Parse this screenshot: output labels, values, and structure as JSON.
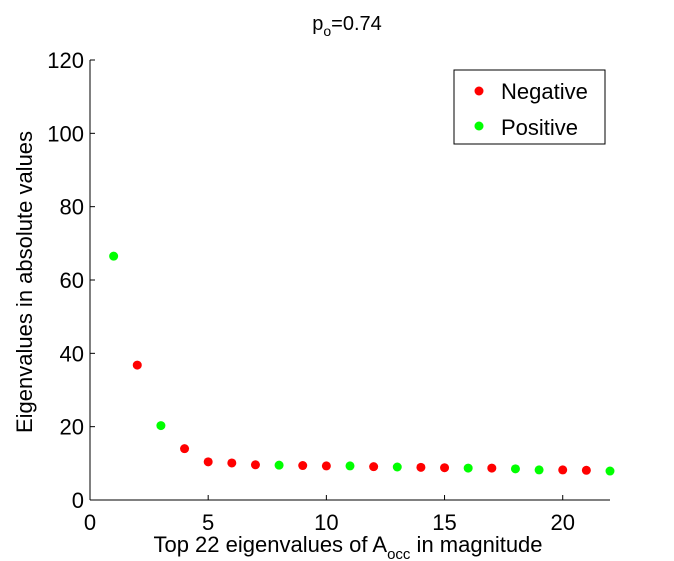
{
  "chart_data": {
    "type": "scatter",
    "title": {
      "base": "p",
      "sub": "o",
      "rest": "=0.74"
    },
    "xlabel": {
      "before": "Top 22 eigenvalues of A",
      "sub": "occ",
      "after": " in magnitude"
    },
    "ylabel": "Eigenvalues in absolute values",
    "xlim": [
      0,
      22
    ],
    "ylim": [
      0,
      120
    ],
    "xticks": [
      0,
      5,
      10,
      15,
      20
    ],
    "yticks": [
      0,
      20,
      40,
      60,
      80,
      100,
      120
    ],
    "grid": false,
    "legend_position": "top-right",
    "series": [
      {
        "name": "Negative",
        "color": "#ff0000",
        "x": [
          2,
          4,
          5,
          6,
          7,
          9,
          10,
          12,
          14,
          15,
          17,
          20,
          21
        ],
        "y": [
          36.8,
          14.0,
          10.4,
          10.1,
          9.6,
          9.4,
          9.3,
          9.1,
          8.9,
          8.8,
          8.7,
          8.2,
          8.1
        ]
      },
      {
        "name": "Positive",
        "color": "#00ff00",
        "x": [
          1,
          3,
          8,
          11,
          13,
          16,
          18,
          19,
          22
        ],
        "y": [
          66.5,
          20.3,
          9.5,
          9.3,
          9.0,
          8.7,
          8.5,
          8.2,
          7.9
        ]
      }
    ]
  }
}
